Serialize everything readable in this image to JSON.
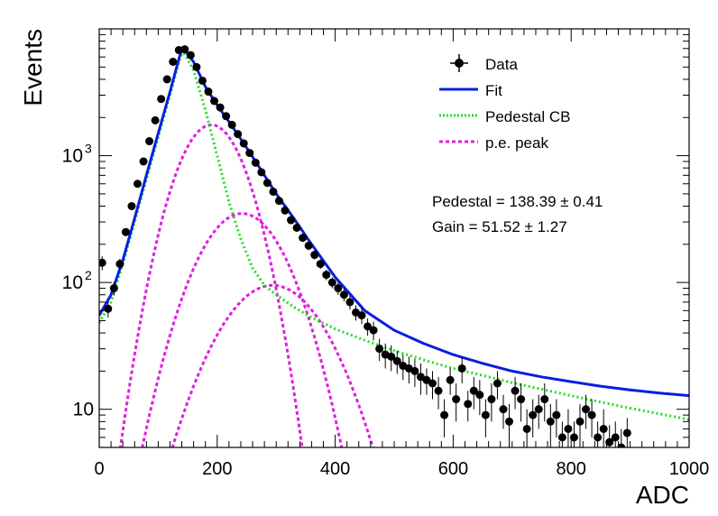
{
  "chart_data": {
    "type": "scatter",
    "xlabel": "ADC",
    "ylabel": "Events",
    "xlim": [
      0,
      1000
    ],
    "ylim": [
      5,
      10000
    ],
    "yscale": "log",
    "grid": false,
    "legend_position": "top-right",
    "x_ticks": [
      "0",
      "200",
      "400",
      "600",
      "800",
      "1000"
    ],
    "y_ticks": [
      {
        "value": 10,
        "base": "10",
        "exp": ""
      },
      {
        "value": 100,
        "base": "10",
        "exp": "2"
      },
      {
        "value": 1000,
        "base": "10",
        "exp": "3"
      }
    ],
    "legend": [
      {
        "label": "Data",
        "style": "marker",
        "color": "#000000"
      },
      {
        "label": "Fit",
        "style": "solid",
        "color": "#0a1ee0"
      },
      {
        "label": "Pedestal CB",
        "style": "dotted",
        "color": "#22dd22"
      },
      {
        "label": "p.e. peak",
        "style": "dashed",
        "color": "#e020e0"
      }
    ],
    "annotations": [
      "Pedestal = 138.39 ± 0.41",
      "Gain = 51.52 ± 1.27"
    ],
    "data_points": [
      [
        5,
        143,
        18
      ],
      [
        15,
        62,
        9
      ],
      [
        25,
        90,
        11
      ],
      [
        35,
        140,
        14
      ],
      [
        45,
        250,
        18
      ],
      [
        55,
        400,
        22
      ],
      [
        65,
        600,
        28
      ],
      [
        75,
        900,
        32
      ],
      [
        85,
        1300,
        40
      ],
      [
        95,
        1900,
        48
      ],
      [
        105,
        2800,
        58
      ],
      [
        115,
        4000,
        70
      ],
      [
        125,
        5500,
        82
      ],
      [
        135,
        6800,
        90
      ],
      [
        145,
        6900,
        90
      ],
      [
        155,
        6200,
        86
      ],
      [
        165,
        5000,
        78
      ],
      [
        175,
        3900,
        68
      ],
      [
        185,
        3200,
        62
      ],
      [
        195,
        2700,
        56
      ],
      [
        205,
        2400,
        52
      ],
      [
        215,
        2050,
        48
      ],
      [
        225,
        1750,
        44
      ],
      [
        235,
        1480,
        40
      ],
      [
        245,
        1250,
        38
      ],
      [
        255,
        1050,
        34
      ],
      [
        265,
        880,
        30
      ],
      [
        275,
        740,
        28
      ],
      [
        285,
        610,
        26
      ],
      [
        295,
        520,
        24
      ],
      [
        305,
        440,
        22
      ],
      [
        315,
        370,
        20
      ],
      [
        325,
        310,
        18
      ],
      [
        335,
        270,
        17
      ],
      [
        345,
        225,
        16
      ],
      [
        355,
        195,
        15
      ],
      [
        365,
        165,
        13
      ],
      [
        375,
        140,
        12
      ],
      [
        385,
        115,
        11
      ],
      [
        395,
        100,
        10
      ],
      [
        405,
        90,
        10
      ],
      [
        415,
        80,
        9
      ],
      [
        425,
        70,
        9
      ],
      [
        435,
        58,
        8
      ],
      [
        445,
        55,
        8
      ],
      [
        455,
        45,
        7
      ],
      [
        465,
        42,
        7
      ],
      [
        475,
        30,
        6
      ],
      [
        485,
        27,
        6
      ],
      [
        495,
        26,
        6
      ],
      [
        505,
        24,
        5
      ],
      [
        515,
        22,
        5
      ],
      [
        525,
        21,
        5
      ],
      [
        535,
        20,
        5
      ],
      [
        545,
        18,
        5
      ],
      [
        555,
        17,
        4
      ],
      [
        565,
        16,
        4
      ],
      [
        575,
        14,
        4
      ],
      [
        585,
        9,
        3
      ],
      [
        595,
        17,
        4
      ],
      [
        605,
        12,
        4
      ],
      [
        615,
        21,
        5
      ],
      [
        625,
        11,
        3
      ],
      [
        635,
        14,
        4
      ],
      [
        645,
        13,
        4
      ],
      [
        655,
        9,
        3
      ],
      [
        665,
        12,
        4
      ],
      [
        675,
        16,
        4
      ],
      [
        685,
        10,
        3
      ],
      [
        695,
        8,
        3
      ],
      [
        705,
        14,
        4
      ],
      [
        715,
        12,
        4
      ],
      [
        725,
        7,
        3
      ],
      [
        735,
        9,
        3
      ],
      [
        745,
        10,
        3
      ],
      [
        755,
        12,
        4
      ],
      [
        765,
        8,
        3
      ],
      [
        775,
        9,
        3
      ],
      [
        785,
        6,
        2
      ],
      [
        795,
        7,
        3
      ],
      [
        805,
        6,
        2
      ],
      [
        815,
        8,
        3
      ],
      [
        825,
        10,
        3
      ],
      [
        835,
        9,
        3
      ],
      [
        845,
        6,
        2
      ],
      [
        855,
        7,
        3
      ],
      [
        865,
        5.5,
        2
      ],
      [
        875,
        6,
        2
      ],
      [
        885,
        5,
        2
      ],
      [
        895,
        6.5,
        2
      ]
    ],
    "fit": {
      "x": [
        0,
        20,
        40,
        60,
        80,
        100,
        120,
        135,
        140,
        145,
        160,
        180,
        200,
        220,
        240,
        260,
        280,
        300,
        330,
        360,
        400,
        450,
        500,
        550,
        600,
        650,
        700,
        750,
        800,
        850,
        900,
        950,
        1000
      ],
      "y": [
        55,
        80,
        150,
        320,
        700,
        1500,
        3200,
        5800,
        6900,
        6800,
        5500,
        3500,
        2500,
        1850,
        1350,
        980,
        700,
        500,
        320,
        200,
        110,
        60,
        42,
        33,
        27,
        23,
        20,
        18,
        16.5,
        15.2,
        14.2,
        13.4,
        12.8
      ]
    },
    "pedestal_cb": {
      "x": [
        0,
        20,
        40,
        60,
        80,
        100,
        120,
        135,
        140,
        145,
        160,
        180,
        200,
        220,
        240,
        260,
        280,
        300,
        330,
        360,
        400,
        450,
        500,
        550,
        600,
        650,
        700,
        750,
        800,
        850,
        900,
        950,
        1000
      ],
      "y": [
        48,
        70,
        140,
        300,
        650,
        1400,
        3000,
        5500,
        6400,
        6300,
        4700,
        2300,
        1000,
        430,
        220,
        130,
        95,
        80,
        64,
        53,
        43,
        35,
        29,
        24.5,
        21,
        18.5,
        16.2,
        14.4,
        12.8,
        11.4,
        10.2,
        9.2,
        8.3
      ]
    },
    "pe_peaks": [
      {
        "mu": 190,
        "sigma": 45,
        "amp": 1750
      },
      {
        "mu": 242,
        "sigma": 58,
        "amp": 350
      },
      {
        "mu": 294,
        "sigma": 70,
        "amp": 95
      }
    ]
  }
}
